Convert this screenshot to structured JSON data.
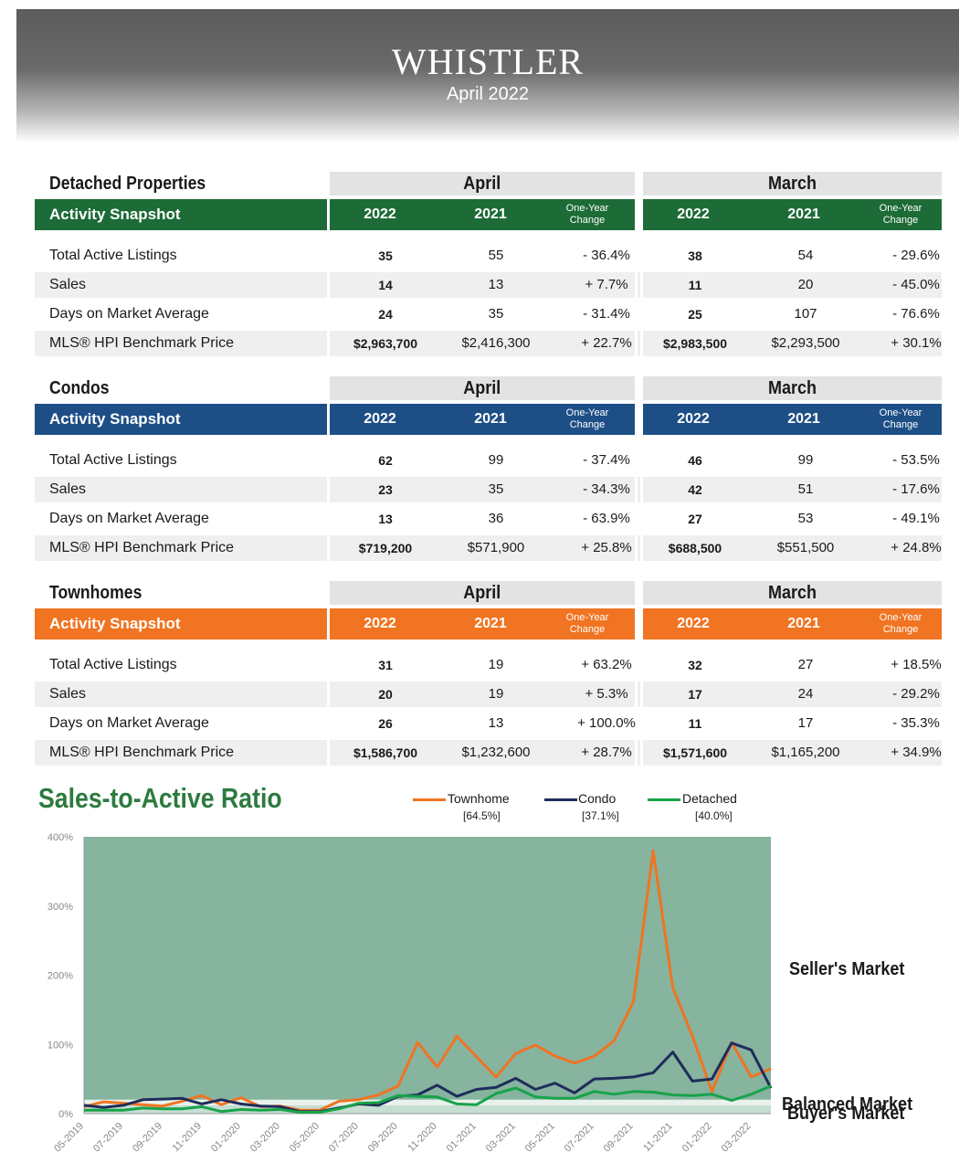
{
  "header": {
    "title": "WHISTLER",
    "subtitle": "April 2022"
  },
  "labels": {
    "month_current": "April",
    "month_prior": "March",
    "snapshot": "Activity Snapshot",
    "year_current": "2022",
    "year_prior": "2021",
    "change_line1": "One-Year",
    "change_line2": "Change"
  },
  "sections": [
    {
      "title": "Detached Properties",
      "color": "#1d6b37",
      "rows": [
        {
          "label": "Total Active Listings",
          "apr": [
            "35",
            "55",
            "- 36.4%"
          ],
          "mar": [
            "38",
            "54",
            "- 29.6%"
          ]
        },
        {
          "label": "Sales",
          "apr": [
            "14",
            "13",
            "+ 7.7%"
          ],
          "mar": [
            "11",
            "20",
            "- 45.0%"
          ]
        },
        {
          "label": "Days on Market Average",
          "apr": [
            "24",
            "35",
            "- 31.4%"
          ],
          "mar": [
            "25",
            "107",
            "- 76.6%"
          ]
        },
        {
          "label": "MLS® HPI Benchmark Price",
          "apr": [
            "$2,963,700",
            "$2,416,300",
            "+ 22.7%"
          ],
          "mar": [
            "$2,983,500",
            "$2,293,500",
            "+ 30.1%"
          ]
        }
      ]
    },
    {
      "title": "Condos",
      "color": "#1d4f86",
      "rows": [
        {
          "label": "Total Active Listings",
          "apr": [
            "62",
            "99",
            "- 37.4%"
          ],
          "mar": [
            "46",
            "99",
            "- 53.5%"
          ]
        },
        {
          "label": "Sales",
          "apr": [
            "23",
            "35",
            "- 34.3%"
          ],
          "mar": [
            "42",
            "51",
            "- 17.6%"
          ]
        },
        {
          "label": "Days on Market Average",
          "apr": [
            "13",
            "36",
            "- 63.9%"
          ],
          "mar": [
            "27",
            "53",
            "- 49.1%"
          ]
        },
        {
          "label": "MLS® HPI Benchmark Price",
          "apr": [
            "$719,200",
            "$571,900",
            "+ 25.8%"
          ],
          "mar": [
            "$688,500",
            "$551,500",
            "+ 24.8%"
          ]
        }
      ]
    },
    {
      "title": "Townhomes",
      "color": "#f07422",
      "rows": [
        {
          "label": "Total Active Listings",
          "apr": [
            "31",
            "19",
            "+ 63.2%"
          ],
          "mar": [
            "32",
            "27",
            "+ 18.5%"
          ]
        },
        {
          "label": "Sales",
          "apr": [
            "20",
            "19",
            "+ 5.3%"
          ],
          "mar": [
            "17",
            "24",
            "- 29.2%"
          ]
        },
        {
          "label": "Days on Market Average",
          "apr": [
            "26",
            "13",
            "+ 100.0%"
          ],
          "mar": [
            "11",
            "17",
            "- 35.3%"
          ]
        },
        {
          "label": "MLS® HPI Benchmark Price",
          "apr": [
            "$1,586,700",
            "$1,232,600",
            "+ 28.7%"
          ],
          "mar": [
            "$1,571,600",
            "$1,165,200",
            "+ 34.9%"
          ]
        }
      ]
    }
  ],
  "chart_data": {
    "type": "line",
    "title": "Sales-to-Active Ratio",
    "x": [
      "05-2019",
      "06-2019",
      "07-2019",
      "08-2019",
      "09-2019",
      "10-2019",
      "11-2019",
      "12-2019",
      "01-2020",
      "02-2020",
      "03-2020",
      "04-2020",
      "05-2020",
      "06-2020",
      "07-2020",
      "08-2020",
      "09-2020",
      "10-2020",
      "11-2020",
      "12-2020",
      "01-2021",
      "02-2021",
      "03-2021",
      "04-2021",
      "05-2021",
      "06-2021",
      "07-2021",
      "08-2021",
      "09-2021",
      "10-2021",
      "11-2021",
      "12-2021",
      "01-2022",
      "02-2022",
      "03-2022",
      "04-2022"
    ],
    "x_tick_labels": [
      "05-2019",
      "07-2019",
      "09-2019",
      "11-2019",
      "01-2020",
      "03-2020",
      "05-2020",
      "07-2020",
      "09-2020",
      "11-2020",
      "01-2021",
      "03-2021",
      "05-2021",
      "07-2021",
      "09-2021",
      "11-2021",
      "01-2022",
      "03-2022"
    ],
    "y_ticks": [
      "0%",
      "100%",
      "200%",
      "300%",
      "400%"
    ],
    "ylim": [
      0,
      400
    ],
    "series": [
      {
        "name": "Townhome",
        "legend_value": "[64.5%]",
        "color": "#f07422",
        "values": [
          10,
          17,
          15,
          13,
          11,
          18,
          26,
          13,
          23,
          10,
          11,
          5,
          5,
          18,
          20,
          27,
          40,
          103,
          67,
          112,
          82,
          53,
          87,
          99,
          83,
          73,
          83,
          105,
          162,
          380,
          182,
          112,
          32,
          103,
          53,
          65
        ]
      },
      {
        "name": "Condo",
        "legend_value": "[37.1%]",
        "color": "#1f2d5a",
        "values": [
          12,
          9,
          12,
          20,
          21,
          22,
          14,
          20,
          14,
          11,
          10,
          3,
          3,
          8,
          14,
          12,
          25,
          27,
          41,
          25,
          35,
          38,
          51,
          35,
          44,
          30,
          50,
          51,
          53,
          59,
          89,
          47,
          50,
          102,
          92,
          37
        ]
      },
      {
        "name": "Detached",
        "legend_value": "[40.0%]",
        "color": "#18a34a",
        "values": [
          5,
          5,
          5,
          8,
          7,
          7,
          10,
          3,
          6,
          5,
          6,
          2,
          2,
          7,
          15,
          16,
          26,
          25,
          24,
          14,
          13,
          29,
          37,
          24,
          22,
          22,
          32,
          28,
          32,
          31,
          27,
          26,
          28,
          19,
          28,
          40
        ]
      }
    ],
    "bands": [
      {
        "label": "Seller's Market",
        "from": 20,
        "to": 400,
        "color": "#86b49f"
      },
      {
        "label": "Balanced Market",
        "from": 12,
        "to": 20,
        "color": "#e9f1ec"
      },
      {
        "label": "Buyer's Market",
        "from": 0,
        "to": 12,
        "color": "#c6ddd1"
      }
    ]
  }
}
